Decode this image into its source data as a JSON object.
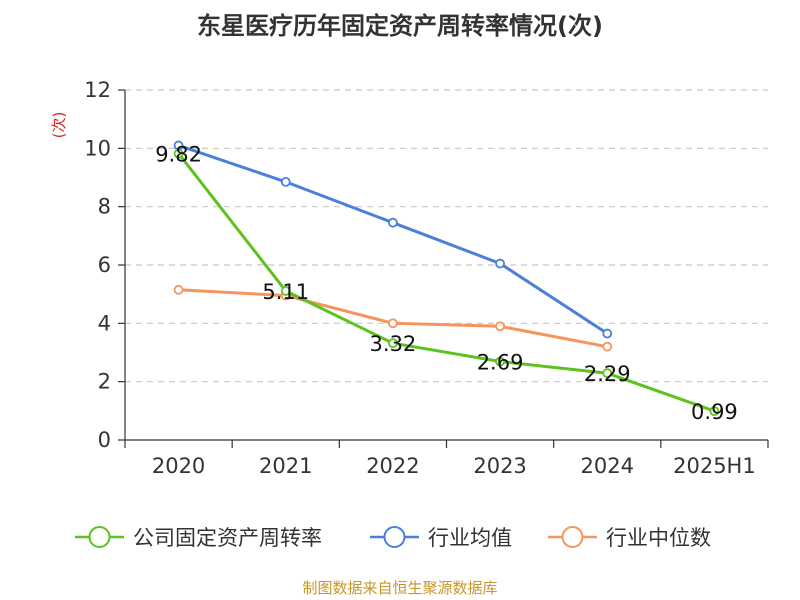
{
  "chart_data": {
    "type": "line",
    "title": "东星医疗历年固定资产周转率情况(次)",
    "ylabel": "(次)",
    "xlabel": "",
    "categories": [
      "2020",
      "2021",
      "2022",
      "2023",
      "2024",
      "2025H1"
    ],
    "ylim": [
      0,
      12
    ],
    "yticks": [
      0,
      2,
      4,
      6,
      8,
      10,
      12
    ],
    "grid": true,
    "legend_position": "bottom",
    "series": [
      {
        "name": "公司固定资产周转率",
        "color": "#5cc21e",
        "values": [
          9.82,
          5.11,
          3.32,
          2.69,
          2.29,
          0.99
        ],
        "labels": [
          "9.82",
          "5.11",
          "3.32",
          "2.69",
          "2.29",
          "0.99"
        ]
      },
      {
        "name": "行业均值",
        "color": "#4a7fdb",
        "values": [
          10.1,
          8.85,
          7.45,
          6.05,
          3.65,
          null
        ]
      },
      {
        "name": "行业中位数",
        "color": "#f5945c",
        "values": [
          5.15,
          4.95,
          4.0,
          3.9,
          3.2,
          null
        ]
      }
    ]
  },
  "footer": {
    "source": "制图数据来自恒生聚源数据库"
  }
}
